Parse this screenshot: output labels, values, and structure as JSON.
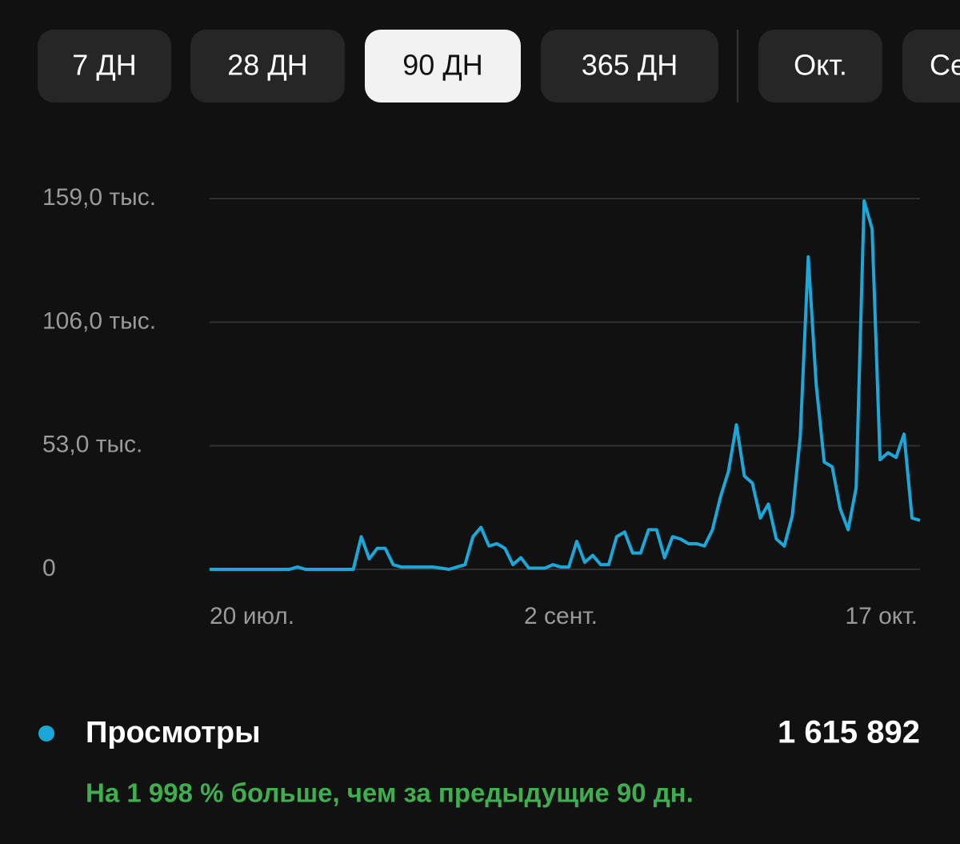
{
  "tabs": [
    "7 ДН",
    "28 ДН",
    "90 ДН",
    "365 ДН",
    "Окт.",
    "Сент."
  ],
  "active_tab": 2,
  "chart_data": {
    "type": "line",
    "categories": [
      "20 июл.",
      null,
      null,
      null,
      null,
      null,
      null,
      null,
      null,
      null,
      null,
      null,
      null,
      null,
      null,
      null,
      null,
      null,
      null,
      null,
      null,
      null,
      null,
      null,
      null,
      null,
      null,
      null,
      null,
      null,
      null,
      null,
      null,
      null,
      null,
      null,
      null,
      null,
      null,
      null,
      null,
      null,
      null,
      null,
      "2 сент.",
      null,
      null,
      null,
      null,
      null,
      null,
      null,
      null,
      null,
      null,
      null,
      null,
      null,
      null,
      null,
      null,
      null,
      null,
      null,
      null,
      null,
      null,
      null,
      null,
      null,
      null,
      null,
      null,
      null,
      null,
      null,
      null,
      null,
      null,
      null,
      null,
      null,
      null,
      null,
      null,
      null,
      null,
      null,
      null,
      "17 окт."
    ],
    "series": [
      {
        "name": "Просмотры",
        "color": "#1ba8d8",
        "values": [
          0,
          0,
          0,
          0,
          0,
          0,
          0,
          0,
          0,
          0,
          0,
          1000,
          0,
          0,
          0,
          0,
          0,
          0,
          0,
          14000,
          4500,
          9000,
          9000,
          2000,
          1000,
          1000,
          1000,
          1000,
          1000,
          500,
          0,
          1000,
          2000,
          14000,
          18000,
          10000,
          11000,
          9000,
          2000,
          5000,
          500,
          500,
          500,
          2000,
          1000,
          1000,
          12000,
          3000,
          6000,
          2000,
          2000,
          14000,
          16000,
          7000,
          7000,
          17000,
          17000,
          5000,
          14000,
          13000,
          11000,
          11000,
          10000,
          17000,
          31000,
          42000,
          62000,
          40000,
          37000,
          22000,
          28000,
          13000,
          10000,
          23000,
          57000,
          134000,
          79000,
          46000,
          44000,
          26000,
          17000,
          35000,
          158000,
          146000,
          47000,
          50000,
          48000,
          58000,
          22000,
          21000
        ]
      }
    ],
    "ylim": [
      0,
      159000
    ],
    "yticks": [
      0,
      {
        "value": 53000,
        "label": "53,0 тыс."
      },
      {
        "value": 106000,
        "label": "106,0 тыс."
      },
      {
        "value": 159000,
        "label": "159,0 тыс."
      }
    ],
    "grid": true
  },
  "summary": {
    "total": "1 615 892",
    "note": "На 1 998 % больше, чем за предыдущие 90 дн."
  }
}
